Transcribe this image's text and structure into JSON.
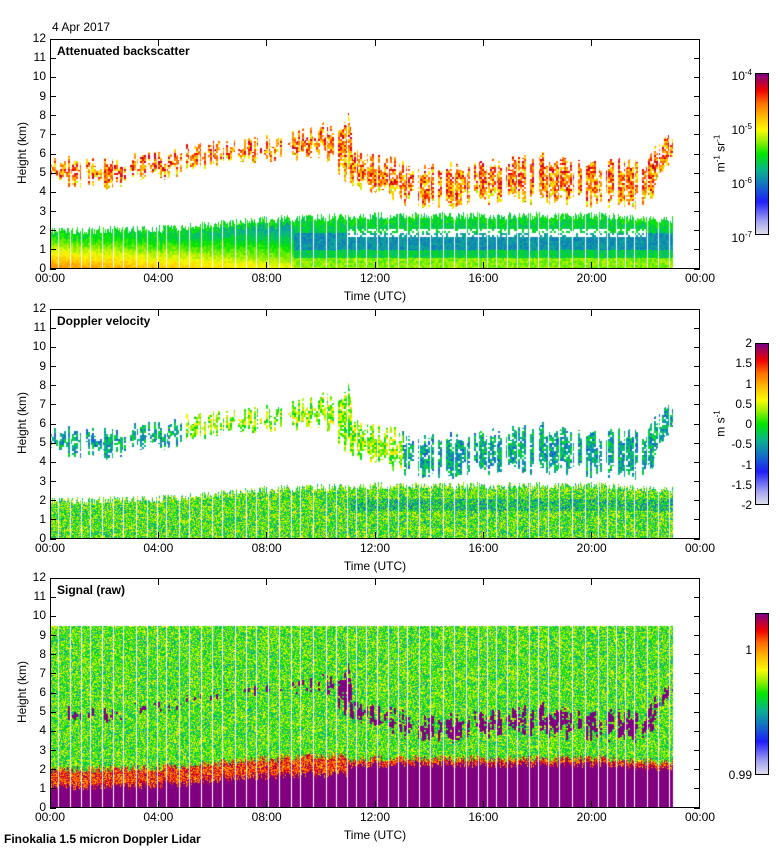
{
  "header": {
    "date": "4 Apr 2017"
  },
  "footer": {
    "instrument": "Finokalia 1.5 micron Doppler Lidar"
  },
  "axes": {
    "ylabel": "Height (km)",
    "xlabel": "Time (UTC)",
    "yticks": [
      "0",
      "1",
      "2",
      "3",
      "4",
      "5",
      "6",
      "7",
      "8",
      "9",
      "10",
      "11",
      "12"
    ],
    "xticks": [
      "00:00",
      "04:00",
      "08:00",
      "12:00",
      "16:00",
      "20:00",
      "00:00"
    ]
  },
  "colors": {
    "frame": "#000000",
    "background": "#ffffff",
    "gap_lines": "#ffffff"
  },
  "chart_data": [
    {
      "type": "heatmap",
      "title": "Attenuated backscatter",
      "xlabel": "Time (UTC)",
      "ylabel": "Height (km)",
      "xlim_hours": [
        0,
        24
      ],
      "ylim_km": [
        0,
        12
      ],
      "data_end_hours": 23.0,
      "colorbar": {
        "scale": "log",
        "range": [
          1e-07,
          0.0001
        ],
        "ticks": [
          {
            "base": "10",
            "exp": "-4"
          },
          {
            "base": "10",
            "exp": "-5"
          },
          {
            "base": "10",
            "exp": "-6"
          },
          {
            "base": "10",
            "exp": "-7"
          }
        ],
        "unit_parts": [
          {
            "base": "m",
            "exp": "-1"
          },
          {
            "base": " sr",
            "exp": "-1"
          }
        ]
      },
      "features": {
        "boundary_layer_top_km": [
          [
            0,
            2.0
          ],
          [
            4,
            2.1
          ],
          [
            8,
            2.6
          ],
          [
            10,
            2.7
          ],
          [
            12,
            2.8
          ],
          [
            16,
            2.8
          ],
          [
            20,
            2.8
          ],
          [
            23,
            2.6
          ]
        ],
        "elevated_layer_top_km": [
          [
            0,
            5.5
          ],
          [
            2,
            5.5
          ],
          [
            4,
            5.8
          ],
          [
            6,
            6.4
          ],
          [
            8,
            6.6
          ],
          [
            10,
            7.2
          ],
          [
            11,
            7.8
          ],
          [
            11.2,
            6.0
          ],
          [
            12,
            5.6
          ],
          [
            14,
            5.1
          ],
          [
            16,
            5.3
          ],
          [
            18,
            5.8
          ],
          [
            20,
            5.2
          ],
          [
            22,
            5.6
          ],
          [
            23,
            7.0
          ]
        ],
        "elevated_layer_base_km": [
          [
            0,
            4.8
          ],
          [
            2,
            4.6
          ],
          [
            4,
            5.0
          ],
          [
            6,
            5.8
          ],
          [
            8,
            6.0
          ],
          [
            10,
            6.2
          ],
          [
            11,
            4.8
          ],
          [
            12,
            4.2
          ],
          [
            14,
            3.4
          ],
          [
            16,
            3.8
          ],
          [
            18,
            3.8
          ],
          [
            20,
            3.6
          ],
          [
            22,
            3.5
          ],
          [
            23,
            5.8
          ]
        ]
      }
    },
    {
      "type": "heatmap",
      "title": "Doppler velocity",
      "xlabel": "Time (UTC)",
      "ylabel": "Height (km)",
      "xlim_hours": [
        0,
        24
      ],
      "ylim_km": [
        0,
        12
      ],
      "data_end_hours": 23.0,
      "colorbar": {
        "scale": "linear",
        "range": [
          -2,
          2
        ],
        "ticks": [
          "2",
          "1.5",
          "1",
          "0.5",
          "0",
          "-0.5",
          "-1",
          "-1.5",
          "-2"
        ],
        "unit_parts": [
          {
            "base": "m",
            "exp": ""
          },
          {
            "base": " s",
            "exp": "-1"
          }
        ]
      }
    },
    {
      "type": "heatmap",
      "title": "Signal (raw)",
      "xlabel": "Time (UTC)",
      "ylabel": "Height (km)",
      "xlim_hours": [
        0,
        24
      ],
      "ylim_km": [
        0,
        12
      ],
      "data_end_hours": 23.0,
      "signal_top_km": 9.5,
      "colorbar": {
        "scale": "linear",
        "range": [
          0.99,
          1.003
        ],
        "ticks": [
          "1",
          "0.99"
        ],
        "unit_parts": []
      }
    }
  ]
}
